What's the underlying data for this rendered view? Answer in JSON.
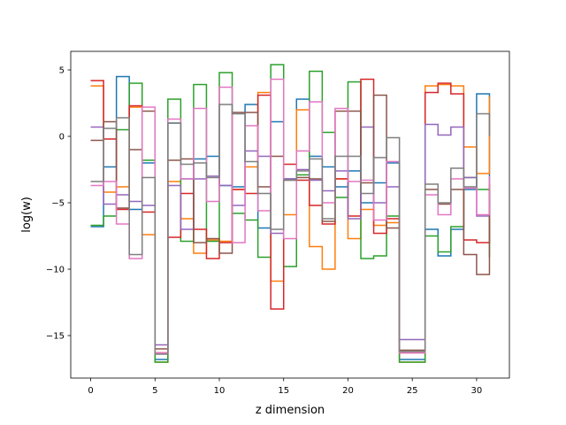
{
  "chart_data": {
    "type": "line",
    "step": "post",
    "xlabel": "z dimension",
    "ylabel": "log(w)",
    "xlim": [
      -1.55,
      32.55
    ],
    "ylim": [
      -18.2,
      6.4
    ],
    "xticks": [
      0,
      5,
      10,
      15,
      20,
      25,
      30
    ],
    "yticks": [
      -15,
      -10,
      -5,
      0,
      5
    ],
    "x": [
      0,
      1,
      2,
      3,
      4,
      5,
      6,
      7,
      8,
      9,
      10,
      11,
      12,
      13,
      14,
      15,
      16,
      17,
      18,
      19,
      20,
      21,
      22,
      23,
      24,
      25,
      26,
      27,
      28,
      29,
      30,
      31
    ],
    "series": [
      {
        "color": "#1f77b4",
        "values": [
          -6.8,
          -2.3,
          4.5,
          -5.5,
          -2.0,
          -16.8,
          1.0,
          -3.2,
          -1.7,
          -1.5,
          -3.7,
          -3.8,
          2.4,
          -6.9,
          1.1,
          -3.2,
          2.8,
          -1.5,
          -2.3,
          -3.8,
          -2.6,
          -5.0,
          -3.5,
          -2.0,
          -16.8,
          -16.8,
          -7.0,
          -9.0,
          -7.0,
          -4.0,
          3.2,
          -3.5
        ]
      },
      {
        "color": "#ff7f0e",
        "values": [
          3.8,
          -4.2,
          -3.8,
          2.2,
          -7.4,
          -17.0,
          -3.4,
          -6.2,
          -8.8,
          -7.8,
          -7.9,
          -4.0,
          -2.3,
          3.3,
          -10.9,
          -5.9,
          2.0,
          -8.3,
          -10.0,
          -3.2,
          -7.7,
          -5.5,
          -6.7,
          -6.5,
          -17.0,
          -17.0,
          3.8,
          3.9,
          3.8,
          -0.8,
          -2.8,
          3.0
        ]
      },
      {
        "color": "#2ca02c",
        "values": [
          -6.7,
          -6.0,
          0.5,
          4.0,
          -1.8,
          -17.0,
          2.8,
          -7.9,
          3.9,
          -7.9,
          4.8,
          -5.8,
          -6.3,
          -9.1,
          5.4,
          -9.8,
          -2.9,
          4.9,
          0.3,
          -4.6,
          4.1,
          -9.2,
          -9.0,
          -6.0,
          -17.0,
          -17.0,
          -7.5,
          -8.7,
          -6.8,
          -3.1,
          -4.0,
          -9.1
        ]
      },
      {
        "color": "#d62728",
        "values": [
          4.2,
          -0.2,
          -5.5,
          2.3,
          -5.7,
          -16.3,
          -7.6,
          -4.3,
          -7.0,
          -9.2,
          -8.0,
          -4.0,
          -4.3,
          3.1,
          -13.0,
          -2.1,
          -3.3,
          -5.2,
          -6.6,
          -3.2,
          -6.0,
          4.3,
          -7.3,
          -6.2,
          -16.3,
          -16.3,
          3.3,
          4.0,
          3.2,
          -7.8,
          -8.0,
          -3.5
        ]
      },
      {
        "color": "#9467bd",
        "values": [
          0.7,
          -5.1,
          -4.4,
          -4.9,
          -5.2,
          -15.7,
          -3.7,
          -7.0,
          -3.2,
          -3.0,
          -3.7,
          -5.2,
          -1.1,
          -1.5,
          -7.3,
          -3.2,
          -2.5,
          -3.3,
          -4.1,
          -2.6,
          -6.2,
          0.7,
          -5.0,
          -3.8,
          -15.3,
          -15.3,
          0.9,
          0.1,
          0.7,
          -3.1,
          -6.0,
          -4.5
        ]
      },
      {
        "color": "#8c564b",
        "values": [
          -0.3,
          1.1,
          -5.4,
          -1.0,
          1.9,
          -16.0,
          -1.8,
          -1.7,
          -8.0,
          -7.7,
          -8.8,
          1.8,
          1.8,
          -3.8,
          -1.5,
          -3.3,
          -3.1,
          -3.2,
          -6.4,
          1.9,
          1.9,
          -3.5,
          3.1,
          -6.9,
          -16.1,
          -16.1,
          -4.0,
          -5.1,
          -4.0,
          -8.9,
          -10.4,
          -3.6
        ]
      },
      {
        "color": "#e377c2",
        "values": [
          -3.7,
          -3.4,
          -6.6,
          -9.2,
          2.2,
          -16.3,
          1.3,
          -3.2,
          2.1,
          -4.9,
          3.7,
          -8.0,
          0.8,
          -5.6,
          4.3,
          -7.7,
          -1.1,
          2.6,
          -5.0,
          2.1,
          -3.4,
          -3.3,
          -6.3,
          -1.9,
          -16.3,
          -16.3,
          -4.4,
          -5.9,
          -3.2,
          -3.9,
          -5.9,
          -3.0
        ]
      },
      {
        "color": "#7f7f7f",
        "values": [
          -3.4,
          0.6,
          1.4,
          -8.9,
          -3.1,
          -16.4,
          1.0,
          -2.1,
          -2.0,
          -3.1,
          2.4,
          1.7,
          -1.9,
          -4.3,
          -7.0,
          -3.3,
          -2.6,
          -1.7,
          -6.2,
          -1.5,
          -1.5,
          -4.3,
          -1.6,
          -0.1,
          -16.2,
          -16.2,
          -3.6,
          -5.0,
          -2.4,
          -3.8,
          1.7,
          0.0
        ]
      }
    ]
  }
}
